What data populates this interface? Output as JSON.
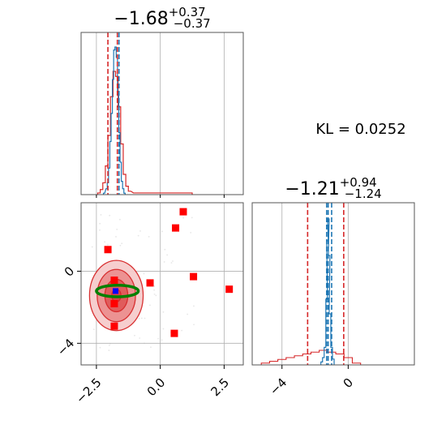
{
  "chart_data": {
    "type": "corner",
    "colors": {
      "blue": "#1f77b4",
      "red": "#d62728",
      "green": "#008000",
      "grid": "#b0b0b0",
      "marker_red": "#ff0000",
      "marker_blue": "#0000ff"
    },
    "kl_text": "KL = 0.0252",
    "panels": {
      "hist_x": {
        "title": {
          "main": "−1.68",
          "sup": "+0.37",
          "sub": "−0.37"
        },
        "xlim": [
          -3.1,
          3.25
        ],
        "blue_quantiles": [
          -1.68
        ],
        "red_quantiles": [
          -2.05,
          -1.68
        ],
        "blue_hist": [
          [
            -2.2,
            0.01
          ],
          [
            -2.1,
            0.04
          ],
          [
            -2.05,
            0.08
          ],
          [
            -2.0,
            0.18
          ],
          [
            -1.95,
            0.36
          ],
          [
            -1.9,
            0.55
          ],
          [
            -1.85,
            0.78
          ],
          [
            -1.8,
            0.98
          ],
          [
            -1.75,
            1.0
          ],
          [
            -1.7,
            0.93
          ],
          [
            -1.65,
            0.68
          ],
          [
            -1.6,
            0.42
          ],
          [
            -1.55,
            0.22
          ],
          [
            -1.5,
            0.09
          ],
          [
            -1.45,
            0.04
          ],
          [
            -1.4,
            0.01
          ]
        ],
        "red_hist": [
          [
            -2.4,
            0.01
          ],
          [
            -2.3,
            0.03
          ],
          [
            -2.2,
            0.07
          ],
          [
            -2.1,
            0.17
          ],
          [
            -2.0,
            0.35
          ],
          [
            -1.9,
            0.58
          ],
          [
            -1.8,
            0.73
          ],
          [
            -1.7,
            0.7
          ],
          [
            -1.6,
            0.52
          ],
          [
            -1.5,
            0.3
          ],
          [
            -1.4,
            0.12
          ],
          [
            -1.3,
            0.05
          ],
          [
            -1.2,
            0.02
          ],
          [
            -1.0,
            0.01
          ],
          [
            0.5,
            0.01
          ],
          [
            1.2,
            0.01
          ]
        ]
      },
      "hist_y": {
        "title": {
          "main": "−1.21",
          "sup": "+0.94",
          "sub": "−1.24"
        },
        "xlim": [
          -5.8,
          4.0
        ],
        "xticks": [
          "−4",
          "0"
        ],
        "blue_quantiles": [
          -1.3,
          -1.21,
          -1.0
        ],
        "red_quantiles": [
          -2.45,
          -0.27
        ],
        "blue_hist": [
          [
            -1.6,
            0.02
          ],
          [
            -1.5,
            0.05
          ],
          [
            -1.4,
            0.12
          ],
          [
            -1.3,
            0.45
          ],
          [
            -1.25,
            0.85
          ],
          [
            -1.2,
            1.0
          ],
          [
            -1.15,
            0.75
          ],
          [
            -1.1,
            0.35
          ],
          [
            -1.0,
            0.12
          ],
          [
            -0.9,
            0.04
          ]
        ],
        "red_hist": [
          [
            -5.0,
            0.01
          ],
          [
            -4.5,
            0.02
          ],
          [
            -4.0,
            0.03
          ],
          [
            -3.5,
            0.04
          ],
          [
            -3.0,
            0.05
          ],
          [
            -2.5,
            0.06
          ],
          [
            -2.0,
            0.07
          ],
          [
            -1.5,
            0.08
          ],
          [
            -1.0,
            0.07
          ],
          [
            -0.5,
            0.06
          ],
          [
            0.0,
            0.04
          ],
          [
            0.5,
            0.01
          ]
        ]
      },
      "scatter": {
        "xlim": [
          -3.1,
          3.25
        ],
        "ylim": [
          -5.2,
          3.8
        ],
        "xticks": [
          "−2.5",
          "0.0",
          "2.5"
        ],
        "yticks": [
          "0",
          "−4"
        ],
        "red_squares": [
          [
            -2.05,
            1.2
          ],
          [
            0.9,
            3.3
          ],
          [
            0.6,
            2.4
          ],
          [
            -1.8,
            -0.5
          ],
          [
            -0.4,
            -0.65
          ],
          [
            1.3,
            -0.3
          ],
          [
            2.7,
            -1.0
          ],
          [
            -1.8,
            -1.8
          ],
          [
            -1.8,
            -3.05
          ],
          [
            0.55,
            -3.45
          ]
        ],
        "blue_marker": [
          -1.75,
          -1.1
        ],
        "green_ellipse": {
          "center": [
            -1.68,
            -1.1
          ],
          "rx": 0.82,
          "ry": 0.32
        },
        "red_contours": {
          "center": [
            -1.72,
            -1.35
          ],
          "levels": [
            [
              1.05,
              1.95
            ],
            [
              0.75,
              1.45
            ],
            [
              0.45,
              0.9
            ],
            [
              0.18,
              0.35
            ]
          ]
        }
      }
    }
  }
}
